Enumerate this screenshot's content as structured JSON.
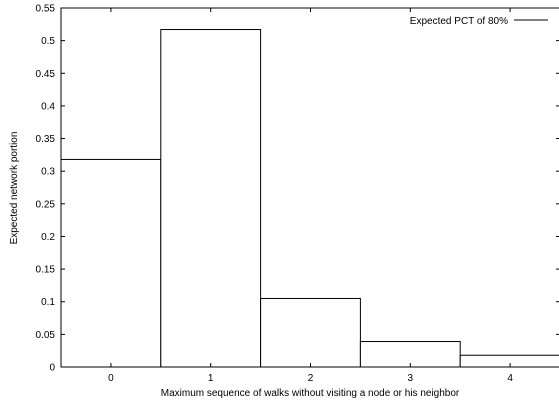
{
  "chart_data": {
    "type": "bar",
    "categories": [
      "0",
      "1",
      "2",
      "3",
      "4"
    ],
    "series": [
      {
        "name": "Expected PCT of 80%",
        "values": [
          0.318,
          0.517,
          0.105,
          0.039,
          0.018
        ]
      }
    ],
    "xlabel": "Maximum sequence of walks without visiting a node or his neighbor",
    "ylabel": "Expected network portion",
    "ylim": [
      0,
      0.55
    ],
    "yticks": [
      "0",
      "0.05",
      "0.1",
      "0.15",
      "0.2",
      "0.25",
      "0.3",
      "0.35",
      "0.4",
      "0.45",
      "0.5",
      "0.55"
    ],
    "grid": false,
    "legend": "top-right",
    "colors": {
      "bar_fill": "#ffffff",
      "bar_stroke": "#000000",
      "axis": "#000000"
    }
  }
}
